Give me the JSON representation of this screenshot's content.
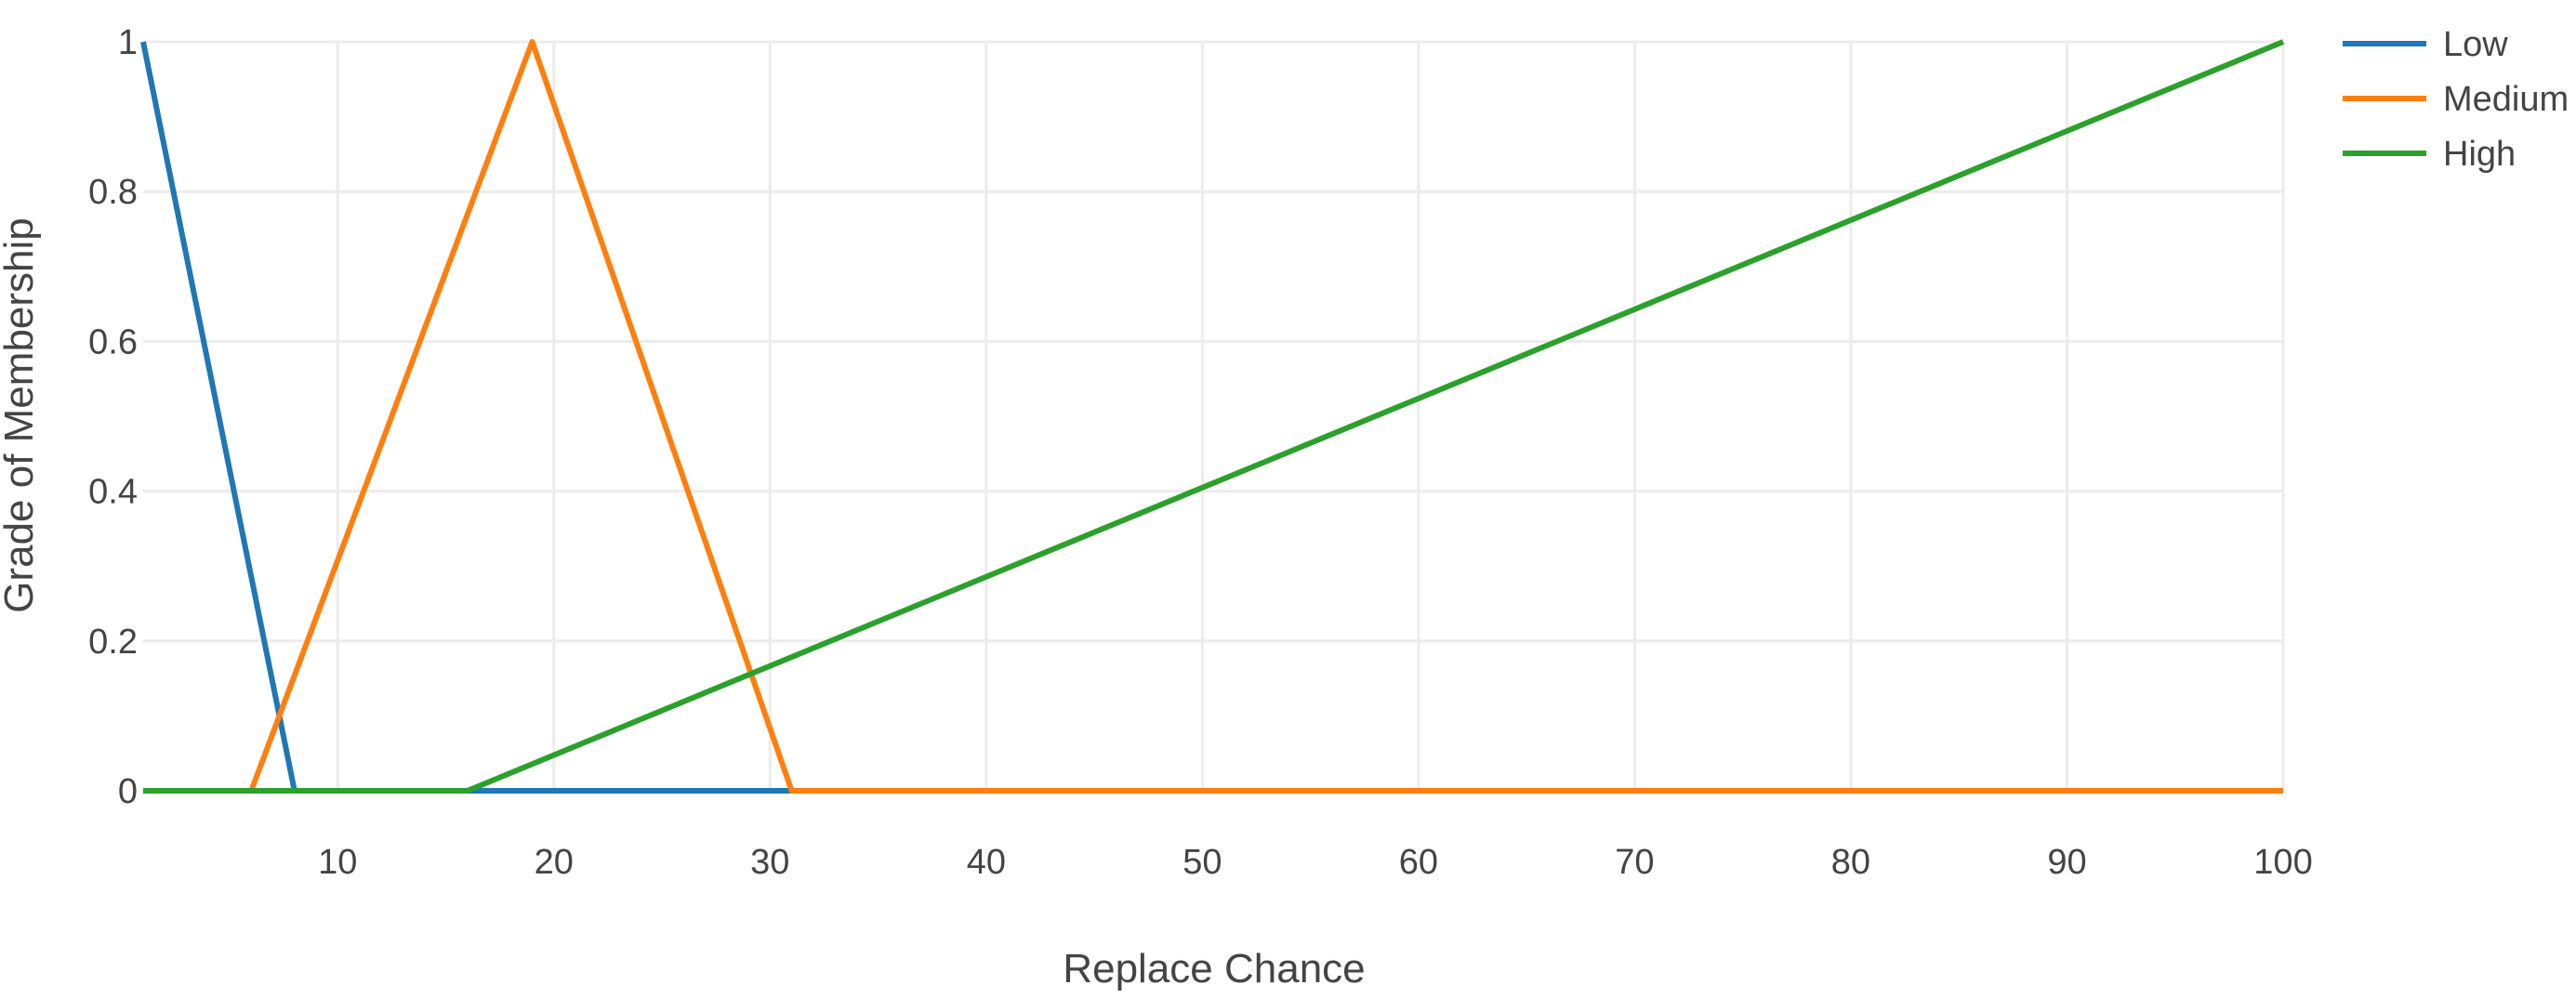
{
  "chart_data": {
    "type": "line",
    "title": "",
    "xlabel": "Replace Chance",
    "ylabel": "Grade of Membership",
    "xlim": [
      1,
      100
    ],
    "ylim": [
      0,
      1
    ],
    "x_ticks": [
      10,
      20,
      30,
      40,
      50,
      60,
      70,
      80,
      90,
      100
    ],
    "y_ticks": [
      0,
      0.2,
      0.4,
      0.6,
      0.8,
      1
    ],
    "grid": true,
    "legend_position": "top-right",
    "series": [
      {
        "name": "Low",
        "color": "#1f77b4",
        "x": [
          1,
          8,
          100
        ],
        "y": [
          1,
          0,
          0
        ]
      },
      {
        "name": "Medium",
        "color": "#ff7f0e",
        "x": [
          1,
          6,
          19,
          31,
          100
        ],
        "y": [
          0,
          0,
          1,
          0,
          0
        ]
      },
      {
        "name": "High",
        "color": "#2ca02c",
        "x": [
          1,
          16,
          100
        ],
        "y": [
          0,
          0,
          1
        ]
      }
    ]
  }
}
